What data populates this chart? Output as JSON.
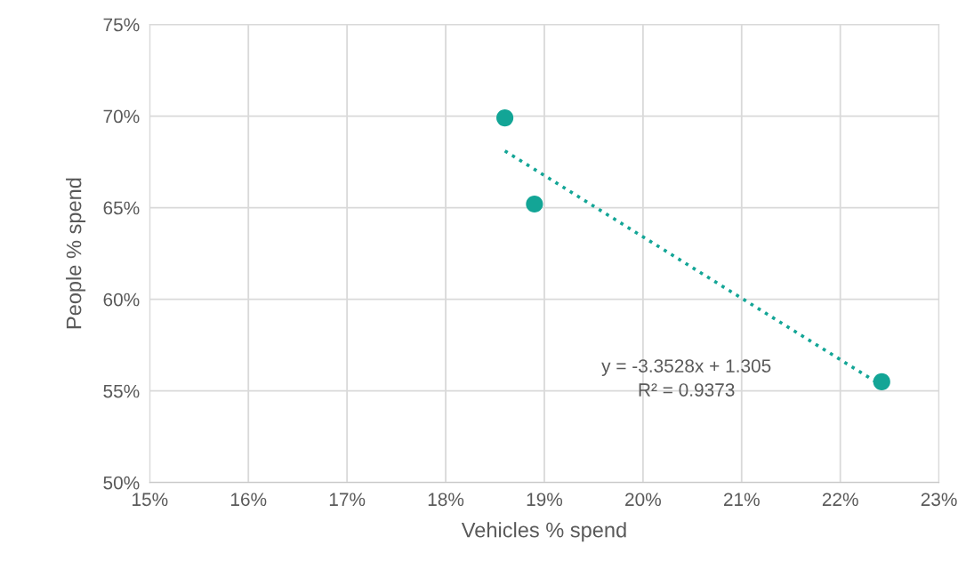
{
  "chart_data": {
    "type": "scatter",
    "xlabel": "Vehicles % spend",
    "ylabel": "People % spend",
    "series": [
      {
        "color": "#13a596",
        "marker": "circle",
        "x": [
          18.6,
          18.9,
          22.42
        ],
        "values": [
          69.9,
          65.2,
          55.5
        ]
      },
      {
        "type": "line",
        "color": "#13a596",
        "marker": "none",
        "line_style": "dotted",
        "x": [
          18.6,
          22.42
        ],
        "values": [
          68.1,
          55.3
        ]
      }
    ],
    "annotations": [
      "y = -3.3528x + 1.305",
      "R² = 0.9373"
    ],
    "xlim": [
      15,
      23
    ],
    "xticks": [
      {
        "value": 15,
        "label": "15%"
      },
      {
        "value": 16,
        "label": "16%"
      },
      {
        "value": 17,
        "label": "17%"
      },
      {
        "value": 18,
        "label": "18%"
      },
      {
        "value": 19,
        "label": "19%"
      },
      {
        "value": 20,
        "label": "20%"
      },
      {
        "value": 21,
        "label": "21%"
      },
      {
        "value": 22,
        "label": "22%"
      },
      {
        "value": 23,
        "label": "23%"
      }
    ],
    "ylim": [
      50,
      75
    ],
    "yticks": [
      {
        "value": 50,
        "label": "50%"
      },
      {
        "value": 55,
        "label": "55%"
      },
      {
        "value": 60,
        "label": "60%"
      },
      {
        "value": 65,
        "label": "65%"
      },
      {
        "value": 70,
        "label": "70%"
      },
      {
        "value": 75,
        "label": "75%"
      }
    ],
    "grid": true,
    "legend": false
  }
}
